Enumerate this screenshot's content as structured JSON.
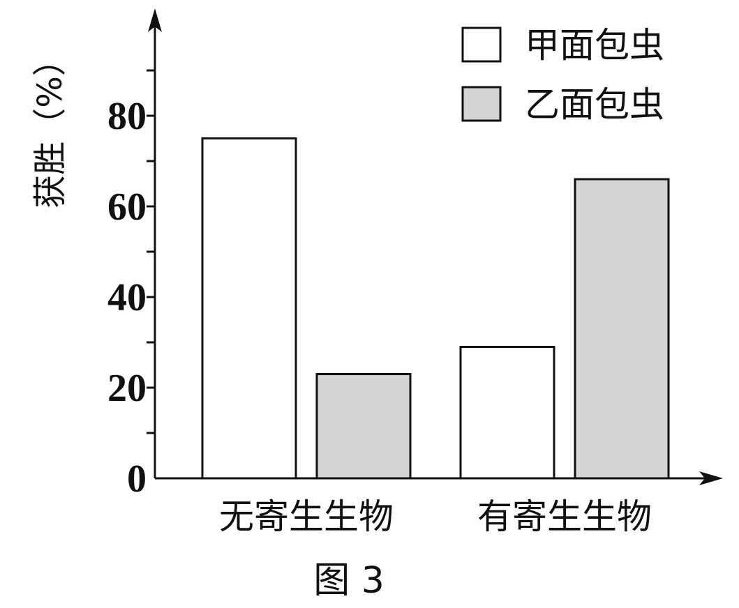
{
  "chart_data": {
    "type": "bar",
    "ylabel": "获胜（%）",
    "ylim": [
      0,
      100
    ],
    "yticks": [
      "0",
      "20",
      "40",
      "60",
      "80"
    ],
    "categories": [
      "无寄生生物",
      "有寄生生物"
    ],
    "series": [
      {
        "name": "甲面包虫",
        "values": [
          75,
          29
        ],
        "color": "#ffffff"
      },
      {
        "name": "乙面包虫",
        "values": [
          23,
          66
        ],
        "color": "#d4d4d4"
      }
    ],
    "legend_position": "top-right",
    "grid": false,
    "caption": "图 3"
  }
}
